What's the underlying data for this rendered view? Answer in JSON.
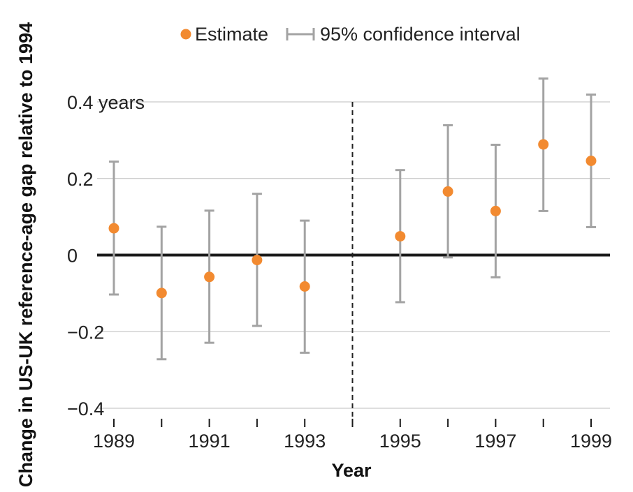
{
  "chart_data": {
    "type": "scatter",
    "xlabel": "Year",
    "ylabel": "Change in US-UK reference-age gap relative to 1994",
    "x_ticks": [
      1989,
      1990,
      1991,
      1992,
      1993,
      1994,
      1995,
      1996,
      1997,
      1998,
      1999
    ],
    "x_tick_labels": [
      "1989",
      "1991",
      "1993",
      "1995",
      "1997",
      "1999"
    ],
    "x_tick_label_values": [
      1989,
      1991,
      1993,
      1995,
      1997,
      1999
    ],
    "xlim": [
      1989,
      1999
    ],
    "ylim": [
      -0.4,
      0.4
    ],
    "y_ticks": [
      -0.4,
      -0.2,
      0,
      0.2,
      0.4
    ],
    "y_tick_labels": [
      "−0.4",
      "−0.2",
      "0",
      "0.2",
      "0.4 years"
    ],
    "grid": "horizontal",
    "reference_line_y": 0,
    "vertical_reference_x": 1994,
    "legend": {
      "placement": "top",
      "estimate_label": "Estimate",
      "ci_label": "95% confidence interval"
    },
    "series": [
      {
        "name": "Estimate",
        "points": [
          {
            "x": 1989,
            "y": 0.07,
            "lo": -0.103,
            "hi": 0.244
          },
          {
            "x": 1990,
            "y": -0.099,
            "lo": -0.272,
            "hi": 0.074
          },
          {
            "x": 1991,
            "y": -0.057,
            "lo": -0.229,
            "hi": 0.116
          },
          {
            "x": 1992,
            "y": -0.013,
            "lo": -0.185,
            "hi": 0.16
          },
          {
            "x": 1993,
            "y": -0.082,
            "lo": -0.255,
            "hi": 0.09
          },
          {
            "x": 1995,
            "y": 0.049,
            "lo": -0.123,
            "hi": 0.222
          },
          {
            "x": 1996,
            "y": 0.166,
            "lo": -0.006,
            "hi": 0.339
          },
          {
            "x": 1997,
            "y": 0.115,
            "lo": -0.058,
            "hi": 0.288
          },
          {
            "x": 1998,
            "y": 0.289,
            "lo": 0.115,
            "hi": 0.461
          },
          {
            "x": 1999,
            "y": 0.246,
            "lo": 0.073,
            "hi": 0.419
          }
        ]
      }
    ],
    "colors": {
      "estimate": "#F28A30",
      "ci": "#a3a3a3",
      "zero_line": "#1a1a1a",
      "grid": "#bdbdbd",
      "reference": "#222222"
    }
  }
}
